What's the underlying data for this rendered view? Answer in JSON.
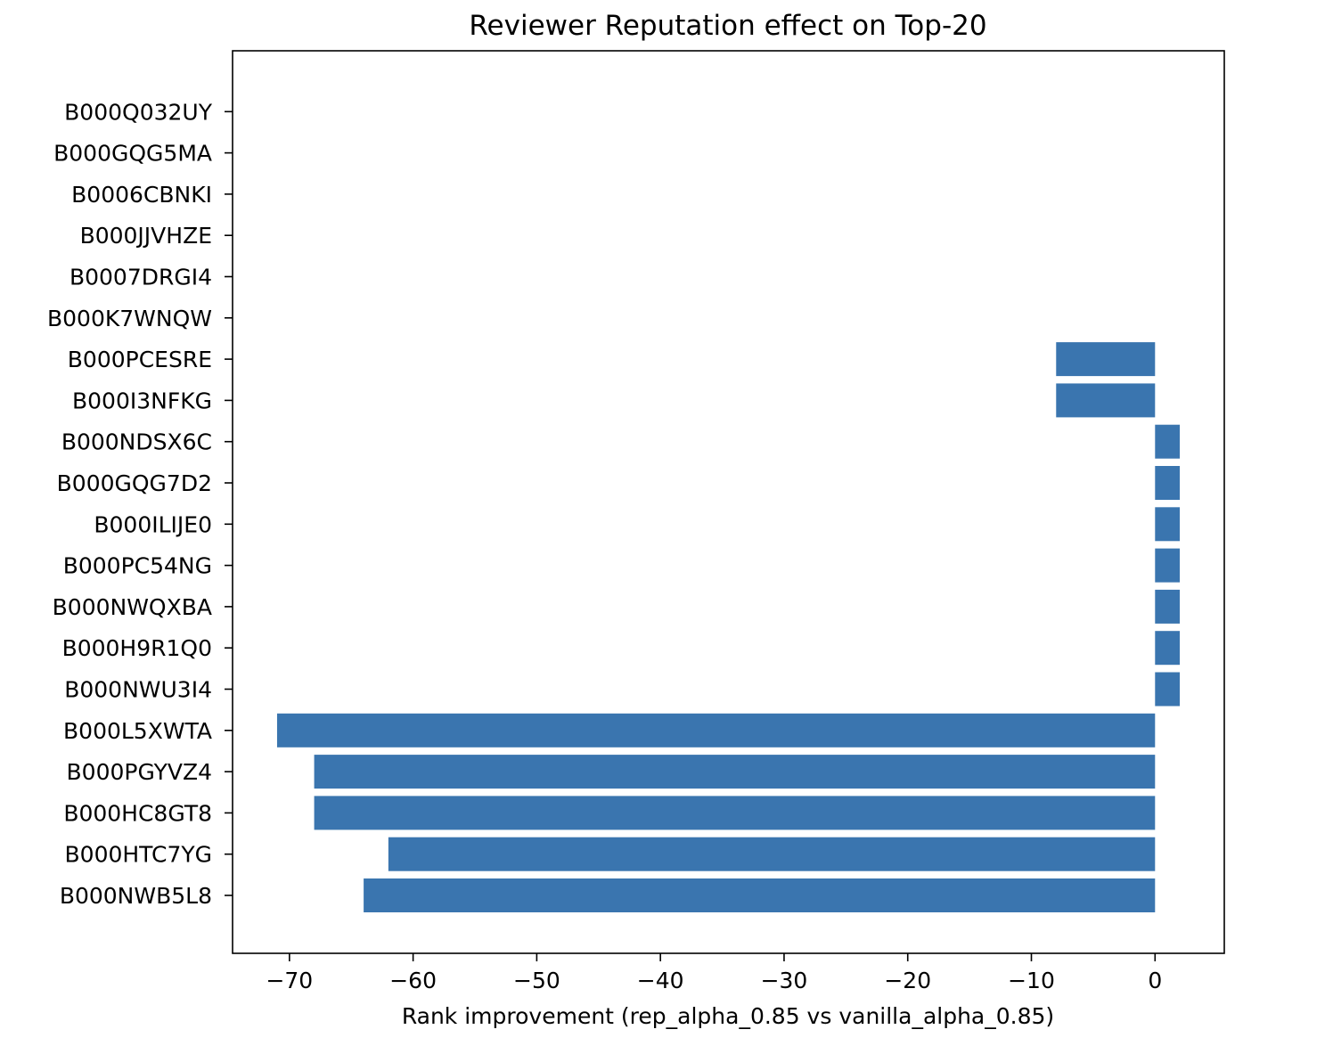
{
  "chart_data": {
    "type": "bar",
    "orientation": "horizontal",
    "title": "Reviewer Reputation effect on Top-20",
    "xlabel": "Rank improvement (rep_alpha_0.85 vs vanilla_alpha_0.85)",
    "ylabel": "",
    "xlim": [
      -74.6,
      5.6
    ],
    "xticks": [
      -70,
      -60,
      -50,
      -40,
      -30,
      -20,
      -10,
      0
    ],
    "xtick_labels": [
      "−70",
      "−60",
      "−50",
      "−40",
      "−30",
      "−20",
      "−10",
      "0"
    ],
    "grid": false,
    "bar_color": "#3a75af",
    "categories": [
      "B000NWB5L8",
      "B000HTC7YG",
      "B000HC8GT8",
      "B000PGYVZ4",
      "B000L5XWTA",
      "B000NWU3I4",
      "B000H9R1Q0",
      "B000NWQXBA",
      "B000PC54NG",
      "B000ILIJE0",
      "B000GQG7D2",
      "B000NDSX6C",
      "B000I3NFKG",
      "B000PCESRE",
      "B000K7WNQW",
      "B0007DRGI4",
      "B000JJVHZE",
      "B0006CBNKI",
      "B000GQG5MA",
      "B000Q032UY"
    ],
    "values": [
      -64,
      -62,
      -68,
      -68,
      -71,
      2,
      2,
      2,
      2,
      2,
      2,
      2,
      -8,
      -8,
      0,
      0,
      0,
      0,
      0,
      0
    ]
  }
}
